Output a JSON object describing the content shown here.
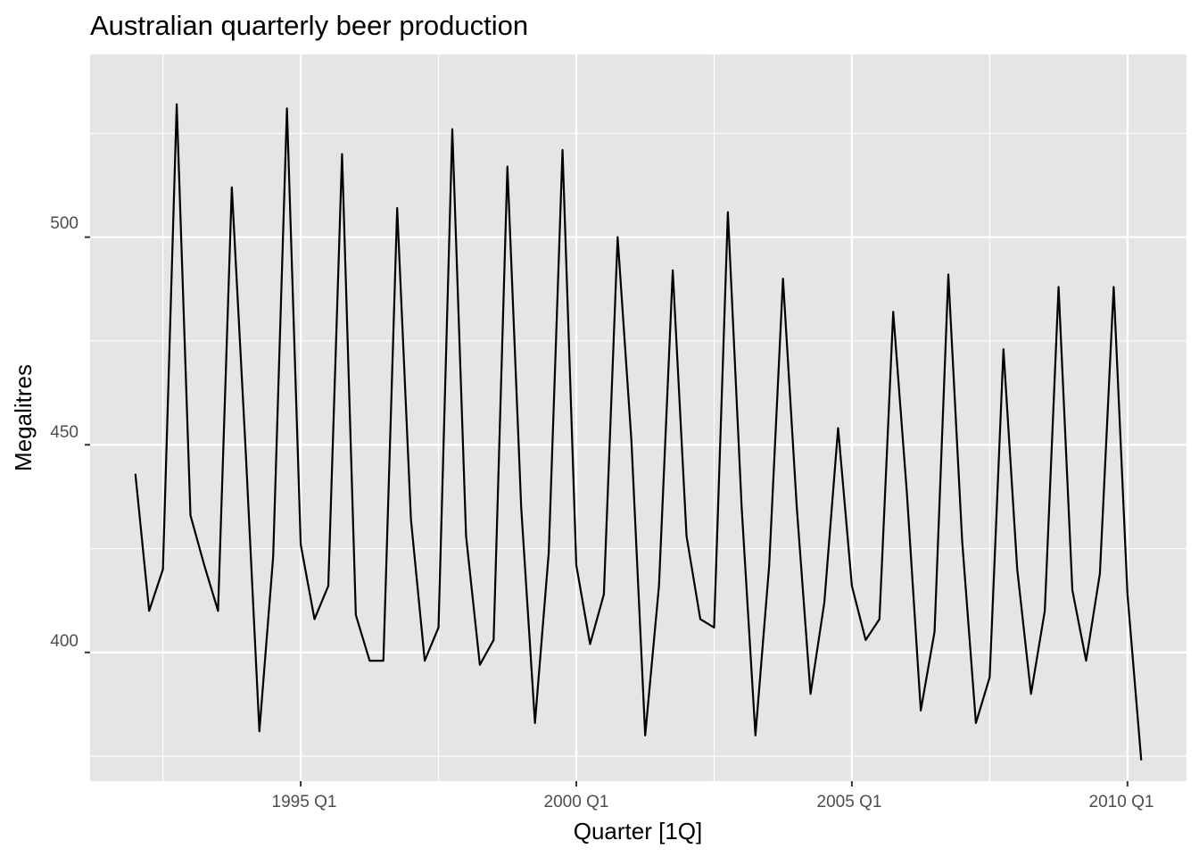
{
  "chart_data": {
    "type": "line",
    "title": "Australian quarterly beer production",
    "xlabel": "Quarter [1Q]",
    "ylabel": "Megalitres",
    "x_tick_labels": [
      "1995 Q1",
      "2000 Q1",
      "2005 Q1",
      "2010 Q1"
    ],
    "y_tick_labels": [
      "400",
      "450",
      "500"
    ],
    "x_start": "1992 Q1",
    "x_end": "2010 Q2",
    "ylim": [
      369,
      544
    ],
    "grid": true,
    "legend": "none",
    "colors": {
      "panel": "#e5e5e5",
      "grid": "#ffffff",
      "line": "#000000",
      "tick_text": "#4d4d4d",
      "tick_mark": "#333333"
    },
    "series": [
      {
        "x": [
          "1992 Q1",
          "1992 Q2",
          "1992 Q3",
          "1992 Q4",
          "1993 Q1",
          "1993 Q2",
          "1993 Q3",
          "1993 Q4",
          "1994 Q1",
          "1994 Q2",
          "1994 Q3",
          "1994 Q4",
          "1995 Q1",
          "1995 Q2",
          "1995 Q3",
          "1995 Q4",
          "1996 Q1",
          "1996 Q2",
          "1996 Q3",
          "1996 Q4",
          "1997 Q1",
          "1997 Q2",
          "1997 Q3",
          "1997 Q4",
          "1998 Q1",
          "1998 Q2",
          "1998 Q3",
          "1998 Q4",
          "1999 Q1",
          "1999 Q2",
          "1999 Q3",
          "1999 Q4",
          "2000 Q1",
          "2000 Q2",
          "2000 Q3",
          "2000 Q4",
          "2001 Q1",
          "2001 Q2",
          "2001 Q3",
          "2001 Q4",
          "2002 Q1",
          "2002 Q2",
          "2002 Q3",
          "2002 Q4",
          "2003 Q1",
          "2003 Q2",
          "2003 Q3",
          "2003 Q4",
          "2004 Q1",
          "2004 Q2",
          "2004 Q3",
          "2004 Q4",
          "2005 Q1",
          "2005 Q2",
          "2005 Q3",
          "2005 Q4",
          "2006 Q1",
          "2006 Q2",
          "2006 Q3",
          "2006 Q4",
          "2007 Q1",
          "2007 Q2",
          "2007 Q3",
          "2007 Q4",
          "2008 Q1",
          "2008 Q2",
          "2008 Q3",
          "2008 Q4",
          "2009 Q1",
          "2009 Q2",
          "2009 Q3",
          "2009 Q4",
          "2010 Q1",
          "2010 Q2"
        ],
        "values": [
          443,
          410,
          420,
          532,
          433,
          421,
          410,
          512,
          449,
          381,
          423,
          531,
          426,
          408,
          416,
          520,
          409,
          398,
          398,
          507,
          432,
          398,
          406,
          526,
          428,
          397,
          403,
          517,
          435,
          383,
          424,
          521,
          421,
          402,
          414,
          500,
          451,
          380,
          416,
          492,
          428,
          408,
          406,
          506,
          435,
          380,
          421,
          490,
          435,
          390,
          412,
          454,
          416,
          403,
          408,
          482,
          438,
          386,
          405,
          491,
          427,
          383,
          394,
          473,
          420,
          390,
          410,
          488,
          415,
          398,
          419,
          488,
          414,
          374
        ]
      }
    ]
  }
}
